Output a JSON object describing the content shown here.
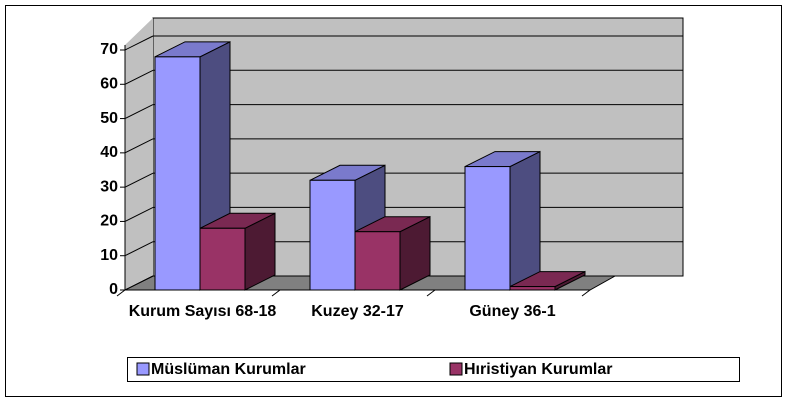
{
  "chart_data": {
    "type": "bar3d",
    "categories": [
      "Kurum Sayısı 68-18",
      "Kuzey 32-17",
      "Güney 36-1"
    ],
    "series": [
      {
        "name": "Müslüman Kurumlar",
        "color": "#9999ff",
        "values": [
          68,
          32,
          36
        ]
      },
      {
        "name": "Hıristiyan Kurumlar",
        "color": "#993366",
        "values": [
          18,
          17,
          1
        ]
      }
    ],
    "ylim": [
      0,
      70
    ],
    "yticks": [
      0,
      10,
      20,
      30,
      40,
      50,
      60,
      70
    ],
    "grid": true,
    "legend": "bottom"
  }
}
